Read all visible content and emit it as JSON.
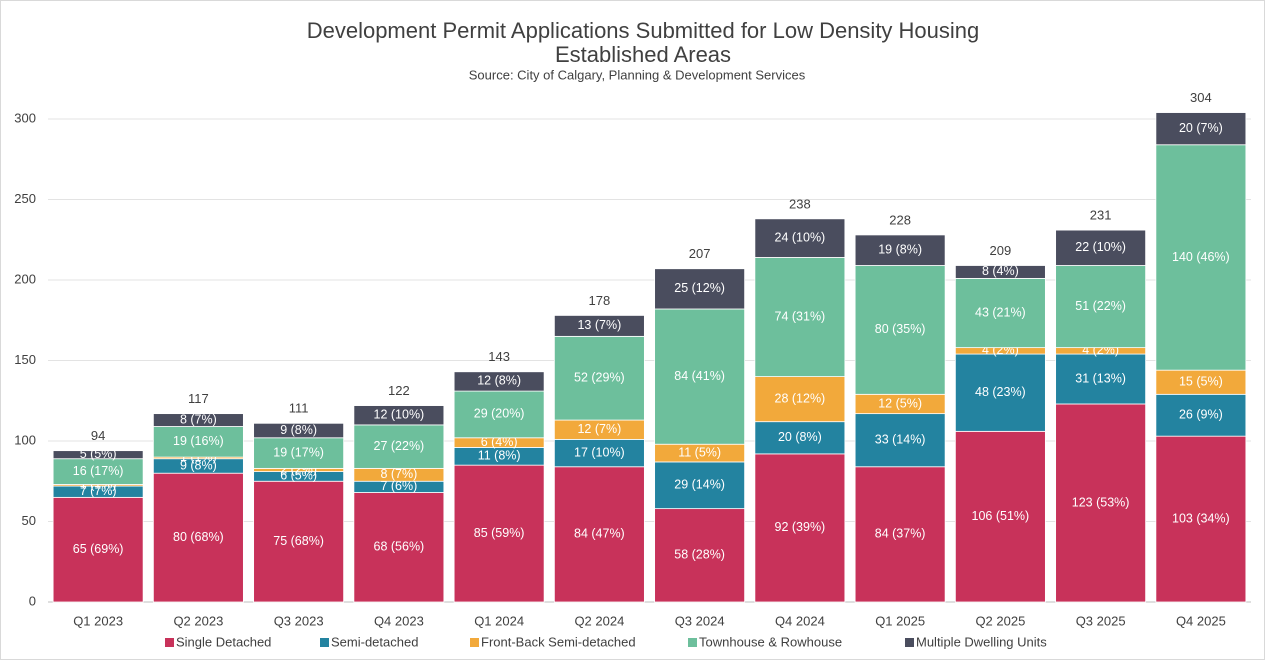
{
  "chart_data": {
    "type": "stacked_bar",
    "title": "Development Permit Applications Submitted for Low Density Housing",
    "subtitle": "Established Areas",
    "source": "Source: City of Calgary, Planning & Development Services",
    "categories": [
      "Q1 2023",
      "Q2 2023",
      "Q3 2023",
      "Q4 2023",
      "Q1 2024",
      "Q2 2024",
      "Q3 2024",
      "Q4 2024",
      "Q1 2025",
      "Q2 2025",
      "Q3 2025",
      "Q4 2025"
    ],
    "series": [
      {
        "name": "Single Detached",
        "color": "#c8325a",
        "values": [
          65,
          80,
          75,
          68,
          85,
          84,
          58,
          92,
          84,
          106,
          123,
          103
        ],
        "value_labels": [
          "65 (69%)",
          "80 (68%)",
          "75 (68%)",
          "68 (56%)",
          "85 (59%)",
          "84 (47%)",
          "58 (28%)",
          "92 (39%)",
          "84 (37%)",
          "106 (51%)",
          "123 (53%)",
          "103 (34%)"
        ]
      },
      {
        "name": "Semi-detached",
        "color": "#2383a0",
        "values": [
          7,
          9,
          6,
          7,
          11,
          17,
          29,
          20,
          33,
          48,
          31,
          26
        ],
        "value_labels": [
          "7 (7%)",
          "9 (8%)",
          "6 (5%)",
          "7 (6%)",
          "11 (8%)",
          "17 (10%)",
          "29 (14%)",
          "20 (8%)",
          "33 (14%)",
          "48 (23%)",
          "31 (13%)",
          "26 (9%)"
        ]
      },
      {
        "name": "Front-Back Semi-detached",
        "color": "#f2a93b",
        "values": [
          1,
          1,
          2,
          8,
          6,
          12,
          11,
          28,
          12,
          4,
          4,
          15
        ],
        "value_labels": [
          "1 (1%)",
          "1 (1%)",
          "2 (2%)",
          "8 (7%)",
          "6 (4%)",
          "12 (7%)",
          "11 (5%)",
          "28 (12%)",
          "12 (5%)",
          "4 (2%)",
          "4 (2%)",
          "15 (5%)"
        ]
      },
      {
        "name": "Townhouse & Rowhouse",
        "color": "#6dbf9c",
        "values": [
          16,
          19,
          19,
          27,
          29,
          52,
          84,
          74,
          80,
          43,
          51,
          140
        ],
        "value_labels": [
          "16 (17%)",
          "19 (16%)",
          "19 (17%)",
          "27 (22%)",
          "29 (20%)",
          "52 (29%)",
          "84 (41%)",
          "74 (31%)",
          "80 (35%)",
          "43 (21%)",
          "51 (22%)",
          "140 (46%)"
        ]
      },
      {
        "name": "Multiple Dwelling Units",
        "color": "#4a4d5e",
        "values": [
          5,
          8,
          9,
          12,
          12,
          13,
          25,
          24,
          19,
          8,
          22,
          20
        ],
        "value_labels": [
          "5 (5%)",
          "8 (7%)",
          "9 (8%)",
          "12 (10%)",
          "12 (8%)",
          "13 (7%)",
          "25 (12%)",
          "24 (10%)",
          "19 (8%)",
          "8 (4%)",
          "22 (10%)",
          "20 (7%)"
        ]
      }
    ],
    "totals": [
      94,
      117,
      111,
      122,
      143,
      178,
      207,
      238,
      228,
      209,
      231,
      304
    ],
    "ylim": [
      0,
      320
    ],
    "yticks": [
      0,
      50,
      100,
      150,
      200,
      250,
      300
    ],
    "grid": true,
    "legend": "bottom"
  }
}
